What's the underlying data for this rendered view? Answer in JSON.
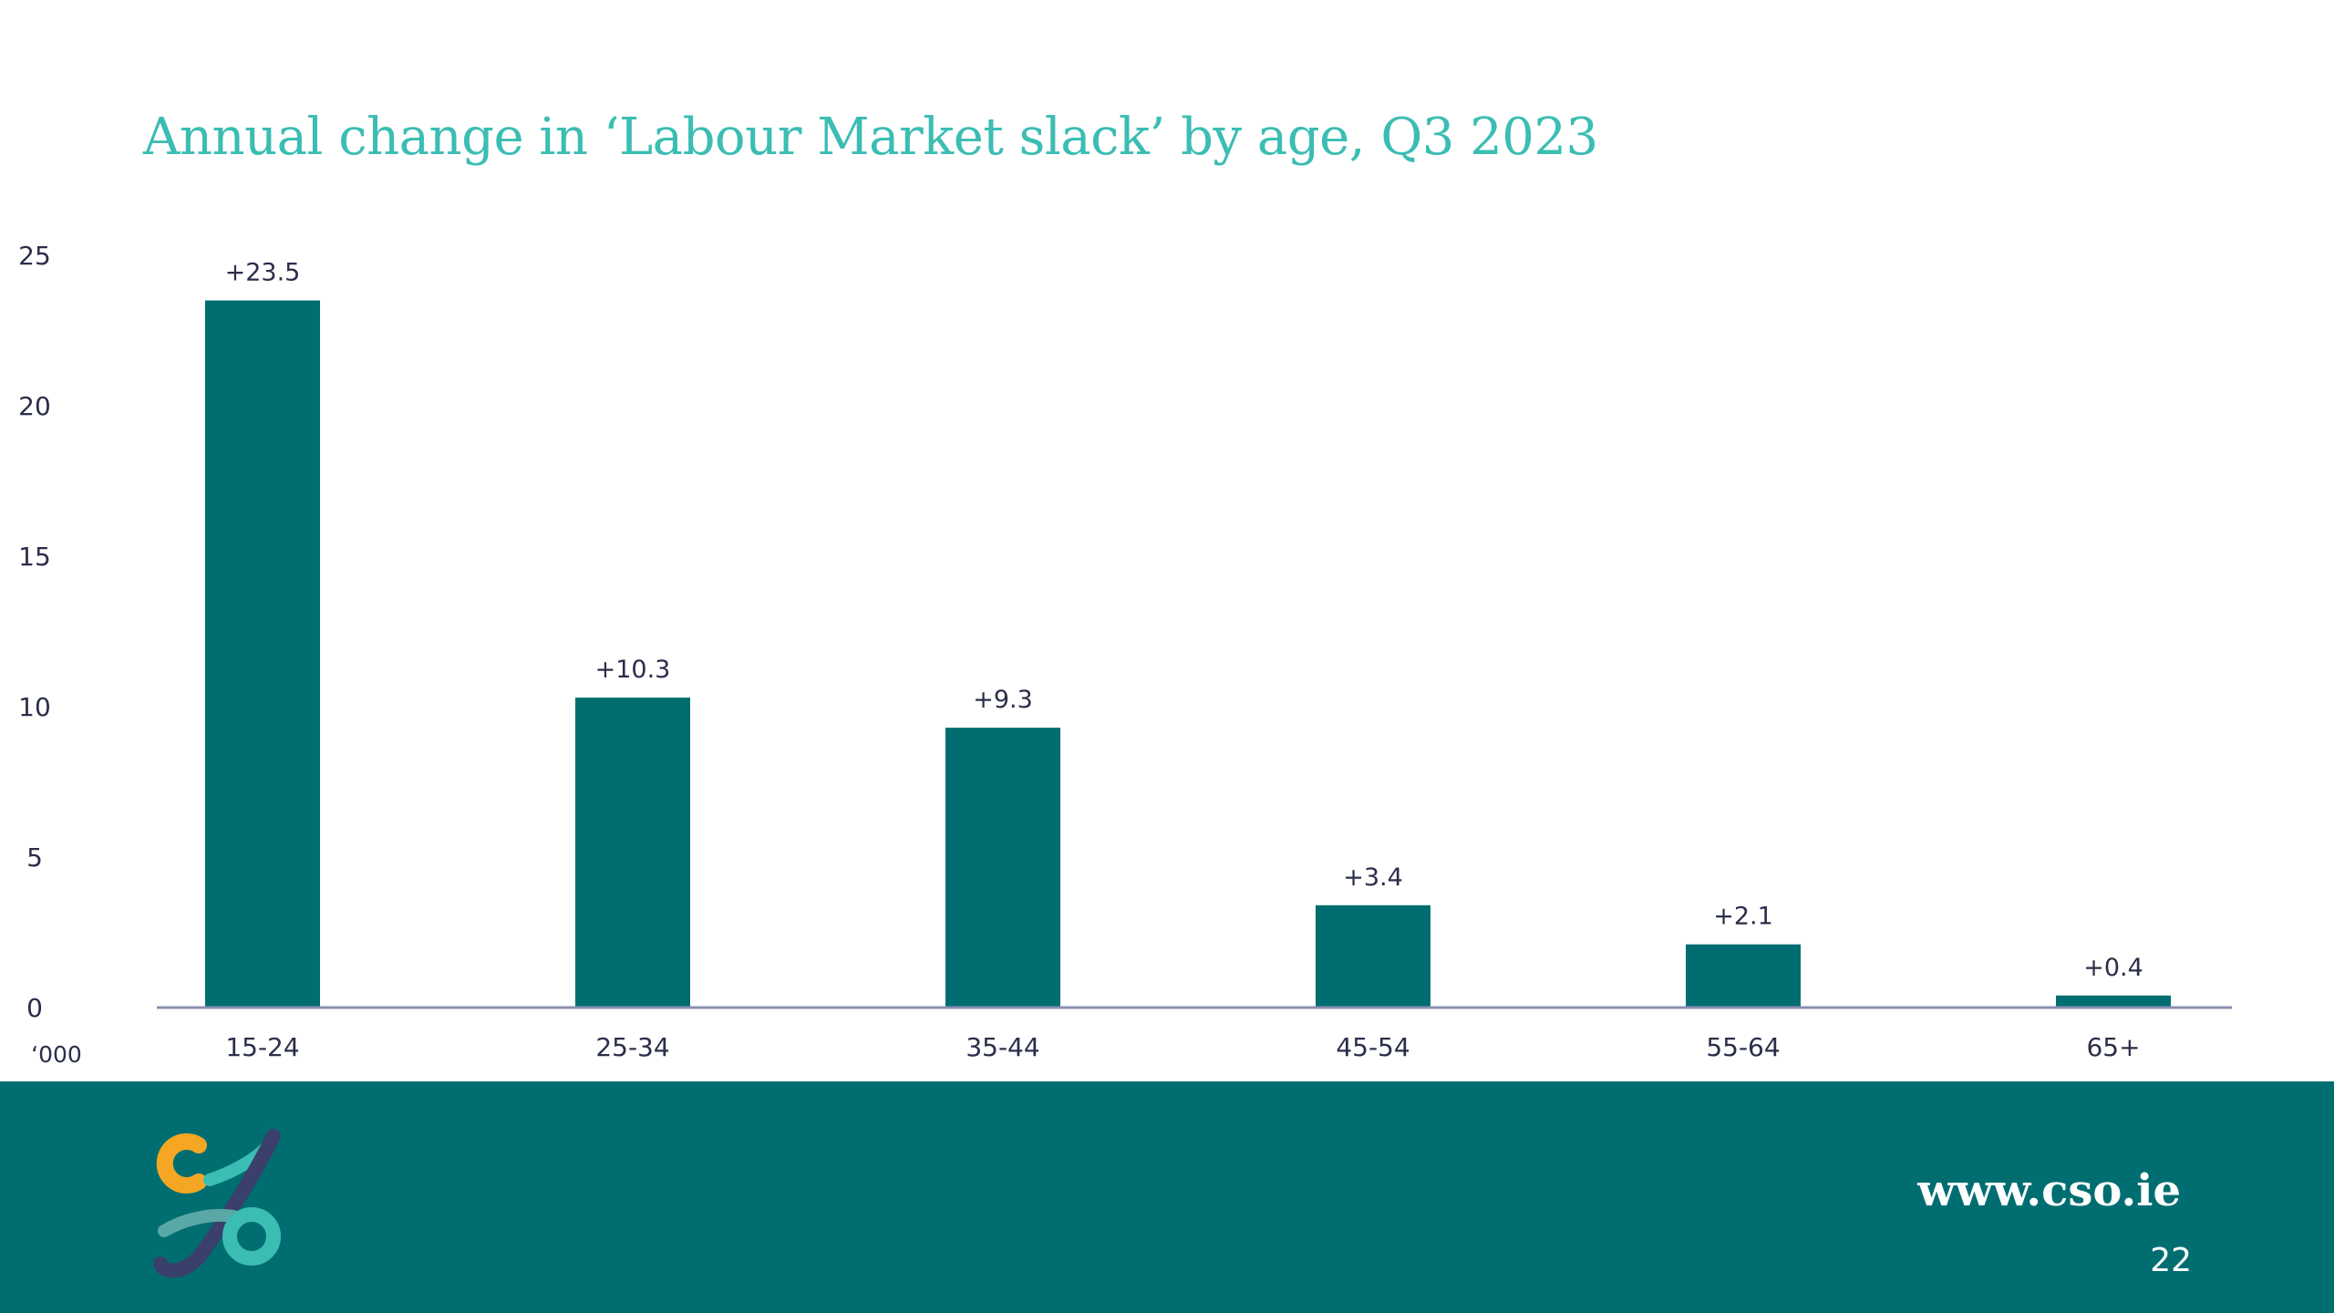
{
  "slide": {
    "title": "Annual change in ‘Labour Market slack’ by age, Q3 2023",
    "website": "www.cso.ie",
    "page_number": "22"
  },
  "colors": {
    "bar": "#006e71",
    "title": "#3bbdb3",
    "footer": "#006e71",
    "axis_line": "#8a8fb0",
    "text": "#2b2e4a"
  },
  "chart_data": {
    "type": "bar",
    "title": "Annual change in ‘Labour Market slack’ by age, Q3 2023",
    "xlabel": "",
    "ylabel": "",
    "y_unit_label": "‘000",
    "categories": [
      "15-24",
      "25-34",
      "35-44",
      "45-54",
      "55-64",
      "65+"
    ],
    "values": [
      23.5,
      10.3,
      9.3,
      3.4,
      2.1,
      0.4
    ],
    "data_labels": [
      "+23.5",
      "+10.3",
      "+9.3",
      "+3.4",
      "+2.1",
      "+0.4"
    ],
    "y_ticks": [
      0,
      5,
      10,
      15,
      20,
      25
    ],
    "ylim": [
      0,
      25
    ],
    "grid": false,
    "legend": "none"
  }
}
